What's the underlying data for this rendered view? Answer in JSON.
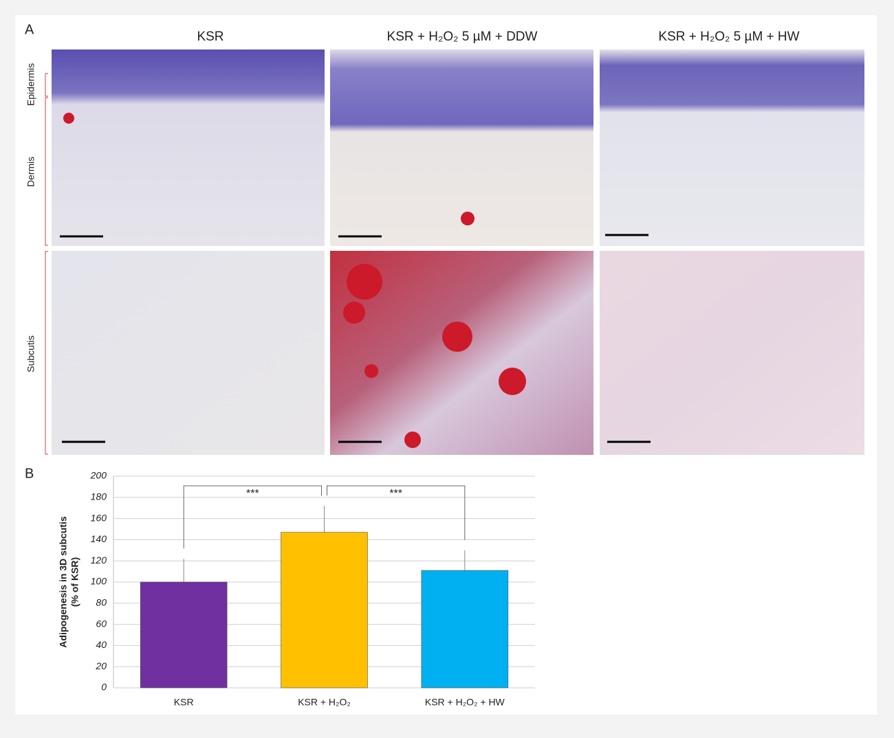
{
  "panel_a": {
    "label": "A",
    "columns": [
      "KSR",
      "KSR + H₂O₂  5 µM + DDW",
      "KSR + H₂O₂  5 µM + HW"
    ],
    "row_labels": [
      "Epidermis",
      "Dermis",
      "Subcutis"
    ]
  },
  "chart_data": {
    "type": "bar",
    "panel_label": "B",
    "y_label": [
      "Adipogenesis in 3D subcutis",
      "(% of KSR)"
    ],
    "categories": [
      "KSR",
      "KSR + H₂O₂",
      "KSR + H₂O₂ + HW"
    ],
    "values": [
      100,
      147,
      111
    ],
    "errors": [
      22,
      25,
      19
    ],
    "colors": [
      "#7030a0",
      "#ffc000",
      "#00b0f0"
    ],
    "significance": [
      {
        "between": [
          0,
          1
        ],
        "label": "***"
      },
      {
        "between": [
          1,
          2
        ],
        "label": "***"
      }
    ],
    "ylim": [
      0,
      200
    ],
    "yticks": [
      0,
      20,
      40,
      60,
      80,
      100,
      120,
      140,
      160,
      180,
      200
    ],
    "grid": true
  }
}
